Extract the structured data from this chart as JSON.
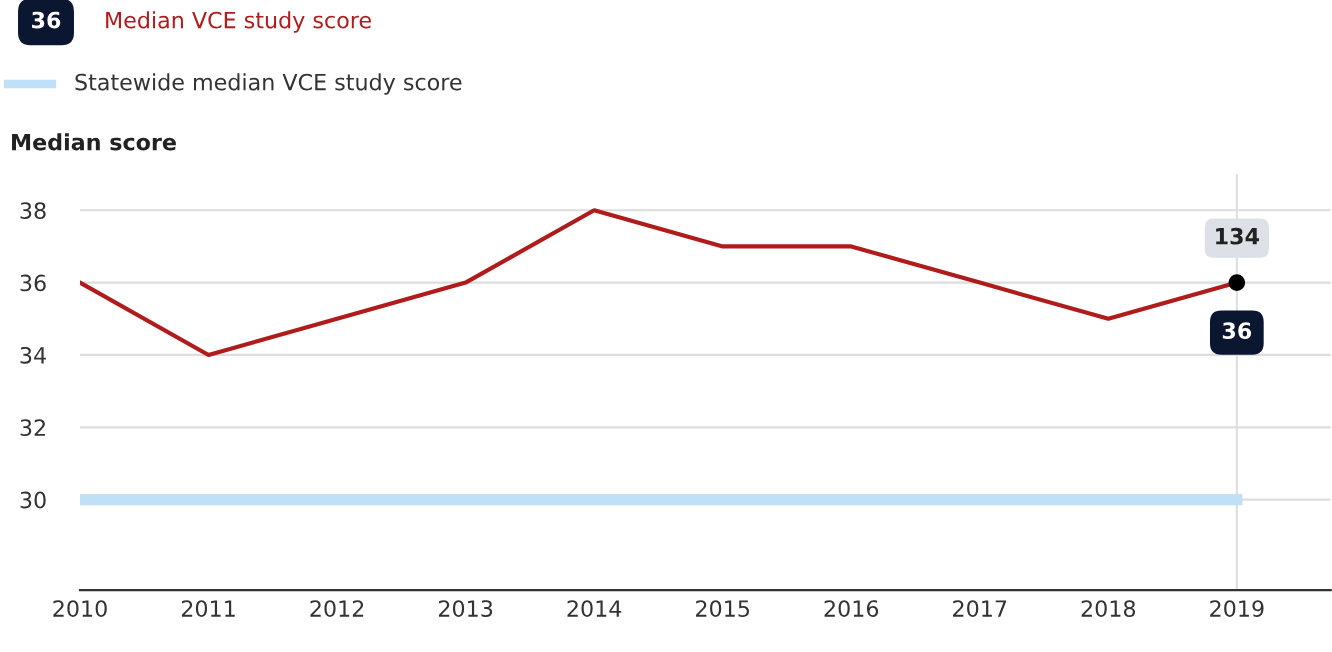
{
  "chart_data": {
    "type": "line",
    "ylabel": "Median score",
    "x": [
      2010,
      2011,
      2012,
      2013,
      2014,
      2015,
      2016,
      2017,
      2018,
      2019
    ],
    "series": [
      {
        "name": "Median VCE study score",
        "color": "#b01c1c",
        "values": [
          36,
          34,
          35,
          36,
          38,
          37,
          37,
          36,
          35,
          36
        ],
        "value_labels": [
          null,
          null,
          null,
          null,
          null,
          null,
          null,
          null,
          null,
          "36"
        ]
      },
      {
        "name": "Statewide median VCE study score",
        "color": "#bfe0f7",
        "values": [
          30,
          30,
          30,
          30,
          30,
          30,
          30,
          30,
          30,
          30
        ]
      }
    ],
    "annotations": [
      {
        "text": "134",
        "x": 2019,
        "y": 36
      },
      "36"
    ],
    "ref_lines": [
      {
        "axis": "x",
        "value": 2019,
        "label": null,
        "color": "#e0e0e0"
      }
    ],
    "xlim": [
      2010,
      2019.73
    ],
    "ylim": [
      27.5,
      39
    ],
    "xticks": [
      2010,
      2011,
      2012,
      2013,
      2014,
      2015,
      2016,
      2017,
      2018,
      2019
    ],
    "yticks": [
      30,
      32,
      34,
      36,
      38
    ],
    "grid": "y",
    "legend": "top left"
  }
}
